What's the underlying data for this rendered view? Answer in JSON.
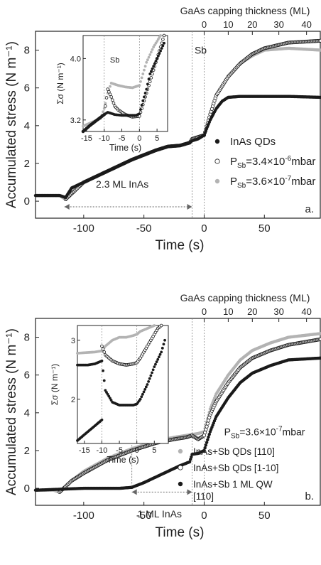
{
  "chart_data": [
    {
      "type": "scatter",
      "panel_label": "a.",
      "xlabel": "Time (s)",
      "ylabel": "Accumulated stress (N m⁻¹)",
      "top_axis_label": "GaAs capping thickness (ML)",
      "xlim": [
        -140,
        97
      ],
      "ylim": [
        -0.9,
        9.0
      ],
      "xticks": [
        -100,
        -50,
        0,
        50
      ],
      "yticks": [
        0,
        2,
        4,
        6,
        8
      ],
      "top_ticks": [
        0,
        10,
        20,
        30,
        40
      ],
      "top_ticks_x": [
        0,
        20,
        40,
        62,
        85
      ],
      "annotations": [
        {
          "text": "Sb",
          "x": -10,
          "y": 8.0
        },
        {
          "text": "2.3 ML InAs",
          "x": -68,
          "y": 0.9
        }
      ],
      "series": [
        {
          "name": "InAs QDs",
          "marker": "filled-dark",
          "points": [
            [
              -140,
              0.3
            ],
            [
              -120,
              0.3
            ],
            [
              -115,
              0.2
            ],
            [
              -110,
              0.7
            ],
            [
              -100,
              1.0
            ],
            [
              -80,
              1.6
            ],
            [
              -60,
              2.2
            ],
            [
              -40,
              2.7
            ],
            [
              -30,
              2.9
            ],
            [
              -20,
              2.95
            ],
            [
              -12,
              3.1
            ],
            [
              -10,
              3.2
            ],
            [
              -5,
              3.3
            ],
            [
              0,
              3.5
            ],
            [
              5,
              4.3
            ],
            [
              10,
              4.9
            ],
            [
              15,
              5.3
            ],
            [
              20,
              5.5
            ],
            [
              30,
              5.55
            ],
            [
              50,
              5.55
            ],
            [
              70,
              5.55
            ],
            [
              97,
              5.5
            ]
          ]
        },
        {
          "name": "P$Sb=3.4×10^-6 mbar",
          "marker": "open",
          "points": [
            [
              -115,
              0.1
            ],
            [
              -100,
              1.0
            ],
            [
              -80,
              1.6
            ],
            [
              -60,
              2.2
            ],
            [
              -40,
              2.7
            ],
            [
              -30,
              2.9
            ],
            [
              -20,
              2.95
            ],
            [
              -12,
              3.1
            ],
            [
              -10,
              3.3
            ],
            [
              -5,
              3.4
            ],
            [
              0,
              3.5
            ],
            [
              5,
              4.6
            ],
            [
              10,
              5.6
            ],
            [
              20,
              6.6
            ],
            [
              30,
              7.3
            ],
            [
              40,
              7.8
            ],
            [
              50,
              8.1
            ],
            [
              70,
              8.4
            ],
            [
              97,
              8.5
            ]
          ]
        },
        {
          "name": "P$Sb=3.6×10^-7 mbar",
          "marker": "filled-light",
          "points": [
            [
              -140,
              0.3
            ],
            [
              -120,
              0.3
            ],
            [
              -115,
              0.1
            ],
            [
              -110,
              0.7
            ],
            [
              -100,
              1.0
            ],
            [
              -80,
              1.6
            ],
            [
              -60,
              2.2
            ],
            [
              -40,
              2.7
            ],
            [
              -30,
              2.9
            ],
            [
              -20,
              2.95
            ],
            [
              -12,
              3.1
            ],
            [
              -10,
              3.3
            ],
            [
              -5,
              3.4
            ],
            [
              0,
              3.5
            ],
            [
              5,
              4.6
            ],
            [
              10,
              5.6
            ],
            [
              20,
              6.6
            ],
            [
              30,
              7.3
            ],
            [
              40,
              7.7
            ],
            [
              50,
              8.0
            ],
            [
              70,
              8.1
            ],
            [
              97,
              8.0
            ]
          ]
        }
      ],
      "legend": [
        {
          "label": "InAs QDs",
          "sub": "",
          "rest": ""
        },
        {
          "label": "P",
          "sub": "Sb",
          "rest": "=3.4×10",
          "sup": "-6",
          "tail": "mbar"
        },
        {
          "label": "P",
          "sub": "Sb",
          "rest": "=3.6×10",
          "sup": "-7",
          "tail": "mbar"
        }
      ],
      "inset": {
        "xlabel": "Time (s)",
        "ylabel": "Σσ (N m⁻¹)",
        "xlim": [
          -16,
          8
        ],
        "ylim": [
          3.05,
          4.3
        ],
        "xticks": [
          -15,
          -10,
          -5,
          0,
          5
        ],
        "yticks": [
          3.2,
          4.0
        ],
        "annotation": "Sb",
        "series": [
          {
            "marker": "filled-dark",
            "points": [
              [
                -16,
                3.05
              ],
              [
                -14,
                3.13
              ],
              [
                -12,
                3.2
              ],
              [
                -10,
                3.27
              ],
              [
                -9,
                3.3
              ],
              [
                -7,
                3.27
              ],
              [
                -5,
                3.26
              ],
              [
                -3,
                3.26
              ],
              [
                -1,
                3.26
              ],
              [
                0,
                3.28
              ],
              [
                1,
                3.45
              ],
              [
                2,
                3.6
              ],
              [
                3,
                3.8
              ],
              [
                5,
                4.0
              ],
              [
                7,
                4.2
              ]
            ]
          },
          {
            "marker": "open",
            "points": [
              [
                -16,
                3.05
              ],
              [
                -14,
                3.13
              ],
              [
                -12,
                3.2
              ],
              [
                -10,
                3.27
              ],
              [
                -9,
                3.6
              ],
              [
                -8,
                3.5
              ],
              [
                -7,
                3.38
              ],
              [
                -6,
                3.33
              ],
              [
                -4,
                3.27
              ],
              [
                -2,
                3.24
              ],
              [
                0,
                3.25
              ],
              [
                1,
                3.4
              ],
              [
                2,
                3.55
              ],
              [
                3,
                3.7
              ],
              [
                5,
                4.0
              ],
              [
                7,
                4.3
              ]
            ]
          },
          {
            "marker": "filled-light",
            "points": [
              [
                -16,
                3.12
              ],
              [
                -13,
                3.18
              ],
              [
                -11,
                3.22
              ],
              [
                -10,
                3.35
              ],
              [
                -9,
                3.55
              ],
              [
                -8,
                3.68
              ],
              [
                -6,
                3.65
              ],
              [
                -4,
                3.63
              ],
              [
                -2,
                3.62
              ],
              [
                0,
                3.65
              ],
              [
                1,
                3.8
              ],
              [
                2,
                3.95
              ],
              [
                4,
                4.15
              ],
              [
                6,
                4.3
              ]
            ]
          }
        ]
      }
    },
    {
      "type": "scatter",
      "panel_label": "b.",
      "xlabel": "Time (s)",
      "ylabel": "Accumulated stress (N m⁻¹)",
      "top_axis_label": "GaAs capping thickness (ML)",
      "xlim": [
        -140,
        97
      ],
      "ylim": [
        -0.9,
        9.0
      ],
      "xticks": [
        -100,
        -50,
        0,
        50
      ],
      "yticks": [
        0,
        2,
        4,
        6,
        8
      ],
      "top_ticks": [
        0,
        10,
        20,
        30,
        40
      ],
      "top_ticks_x": [
        0,
        20,
        40,
        62,
        85
      ],
      "annotations": [
        {
          "text": "1 ML InAs",
          "x": -37,
          "y": -0.9
        },
        {
          "text": "P",
          "sub": "Sb",
          "rest": "=3.6×10",
          "sup": "-7",
          "tail": "mbar",
          "x": 52,
          "y": 3.0
        }
      ],
      "series": [
        {
          "name": "InAs+Sb QDs [110]",
          "marker": "filled-light",
          "points": [
            [
              -140,
              -0.1
            ],
            [
              -125,
              -0.1
            ],
            [
              -120,
              -0.2
            ],
            [
              -110,
              0.4
            ],
            [
              -100,
              0.9
            ],
            [
              -80,
              1.6
            ],
            [
              -60,
              2.1
            ],
            [
              -40,
              2.5
            ],
            [
              -25,
              2.7
            ],
            [
              -15,
              2.8
            ],
            [
              -10,
              2.85
            ],
            [
              -5,
              2.9
            ],
            [
              0,
              3.0
            ],
            [
              5,
              4.2
            ],
            [
              10,
              5.0
            ],
            [
              20,
              6.0
            ],
            [
              30,
              6.8
            ],
            [
              40,
              7.3
            ],
            [
              55,
              7.7
            ],
            [
              70,
              8.0
            ],
            [
              97,
              8.2
            ]
          ]
        },
        {
          "name": "InAs+Sb QDs [1-10]",
          "marker": "open",
          "points": [
            [
              -120,
              -0.2
            ],
            [
              -110,
              0.4
            ],
            [
              -100,
              0.8
            ],
            [
              -80,
              1.5
            ],
            [
              -60,
              2.0
            ],
            [
              -40,
              2.4
            ],
            [
              -25,
              2.6
            ],
            [
              -15,
              2.7
            ],
            [
              -10,
              2.8
            ],
            [
              -5,
              2.6
            ],
            [
              0,
              2.8
            ],
            [
              5,
              3.9
            ],
            [
              10,
              4.6
            ],
            [
              20,
              5.6
            ],
            [
              30,
              6.4
            ],
            [
              40,
              6.9
            ],
            [
              55,
              7.3
            ],
            [
              70,
              7.6
            ],
            [
              97,
              7.9
            ]
          ]
        },
        {
          "name": "InAs+Sb 1 ML QW [110]",
          "marker": "filled-dark",
          "points": [
            [
              -140,
              -0.1
            ],
            [
              -100,
              0.0
            ],
            [
              -70,
              0.0
            ],
            [
              -60,
              0.05
            ],
            [
              -50,
              0.3
            ],
            [
              -40,
              0.6
            ],
            [
              -30,
              0.9
            ],
            [
              -20,
              1.2
            ],
            [
              -12,
              1.4
            ],
            [
              -10,
              1.8
            ],
            [
              -5,
              1.85
            ],
            [
              0,
              2.0
            ],
            [
              5,
              3.0
            ],
            [
              10,
              3.8
            ],
            [
              20,
              4.8
            ],
            [
              30,
              5.6
            ],
            [
              40,
              6.1
            ],
            [
              55,
              6.5
            ],
            [
              70,
              6.8
            ],
            [
              97,
              6.9
            ]
          ]
        }
      ],
      "legend": [
        {
          "label": "InAs+Sb QDs [110]"
        },
        {
          "label": "InAs+Sb QDs [1-10]"
        },
        {
          "label": "InAs+Sb 1 ML QW",
          "line2": "[110]"
        }
      ],
      "inset": {
        "xlabel": "Time (s)",
        "ylabel": "Σσ (N m⁻¹)",
        "xlim": [
          -17,
          9
        ],
        "ylim": [
          1.25,
          3.25
        ],
        "xticks": [
          -15,
          -10,
          -5,
          0,
          5
        ],
        "yticks": [
          2,
          3
        ],
        "series": [
          {
            "marker": "filled-light",
            "points": [
              [
                -17,
                2.78
              ],
              [
                -12,
                2.8
              ],
              [
                -10,
                2.82
              ],
              [
                -9,
                2.9
              ],
              [
                -7,
                3.0
              ],
              [
                -5,
                3.05
              ],
              [
                -3,
                3.05
              ],
              [
                -1,
                3.08
              ],
              [
                0,
                3.1
              ],
              [
                1,
                3.15
              ],
              [
                3,
                3.2
              ],
              [
                5,
                3.25
              ]
            ]
          },
          {
            "marker": "open",
            "points": [
              [
                -10,
                2.9
              ],
              [
                -9,
                2.75
              ],
              [
                -7,
                2.65
              ],
              [
                -5,
                2.6
              ],
              [
                -3,
                2.58
              ],
              [
                -1,
                2.6
              ],
              [
                0,
                2.62
              ],
              [
                1,
                2.7
              ],
              [
                2,
                2.8
              ],
              [
                4,
                3.0
              ],
              [
                6,
                3.2
              ],
              [
                7,
                3.25
              ]
            ]
          },
          {
            "marker": "filled-dark",
            "points": [
              [
                -17,
                2.58
              ],
              [
                -14,
                2.58
              ],
              [
                -12,
                2.6
              ],
              [
                -10,
                2.65
              ],
              [
                -9,
                2.15
              ],
              [
                -7,
                1.95
              ],
              [
                -5,
                1.9
              ],
              [
                -3,
                1.9
              ],
              [
                -1,
                1.9
              ],
              [
                0,
                1.92
              ],
              [
                1,
                2.0
              ],
              [
                3,
                2.25
              ],
              [
                5,
                2.55
              ],
              [
                7,
                2.8
              ],
              [
                8,
                3.0
              ]
            ]
          },
          {
            "marker": "filled-dark",
            "points": [
              [
                -17,
                1.3
              ],
              [
                -15,
                1.4
              ],
              [
                -13,
                1.5
              ],
              [
                -11,
                1.6
              ],
              [
                -10,
                1.65
              ]
            ]
          }
        ]
      }
    }
  ]
}
